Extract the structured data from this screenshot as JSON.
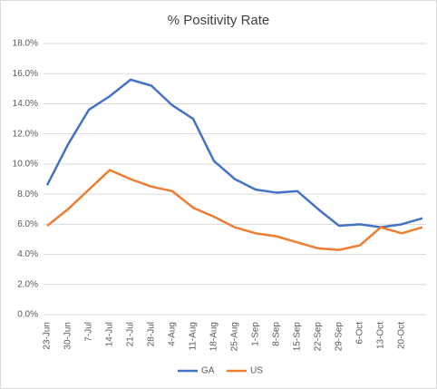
{
  "chart_data": {
    "type": "line",
    "title": "% Positivity Rate",
    "categories": [
      "23-Jun",
      "30-Jun",
      "7-Jul",
      "14-Jul",
      "21-Jul",
      "28-Jul",
      "4-Aug",
      "11-Aug",
      "18-Aug",
      "25-Aug",
      "1-Sep",
      "8-Sep",
      "15-Sep",
      "22-Sep",
      "29-Sep",
      "6-Oct",
      "13-Oct",
      "20-Oct",
      null
    ],
    "series": [
      {
        "name": "GA",
        "color": "#4472c4",
        "values": [
          8.6,
          11.3,
          13.6,
          14.5,
          15.6,
          15.2,
          13.9,
          13.0,
          10.2,
          9.0,
          8.3,
          8.1,
          8.2,
          7.0,
          5.9,
          6.0,
          5.8,
          6.0,
          6.4
        ]
      },
      {
        "name": "US",
        "color": "#ed7d31",
        "values": [
          5.9,
          7.0,
          8.3,
          9.6,
          9.0,
          8.5,
          8.2,
          7.1,
          6.5,
          5.8,
          5.4,
          5.2,
          4.8,
          4.4,
          4.3,
          4.6,
          5.8,
          5.4,
          5.8
        ]
      }
    ],
    "ylim": [
      0,
      18
    ],
    "yticks": [
      {
        "value": 0,
        "label": "0.0%"
      },
      {
        "value": 2,
        "label": "2.0%"
      },
      {
        "value": 4,
        "label": "4.0%"
      },
      {
        "value": 6,
        "label": "6.0%"
      },
      {
        "value": 8,
        "label": "8.0%"
      },
      {
        "value": 10,
        "label": "10.0%"
      },
      {
        "value": 12,
        "label": "12.0%"
      },
      {
        "value": 14,
        "label": "14.0%"
      },
      {
        "value": 16,
        "label": "16.0%"
      },
      {
        "value": 18,
        "label": "18.0%"
      }
    ],
    "grid": true,
    "legend": "bottom"
  }
}
